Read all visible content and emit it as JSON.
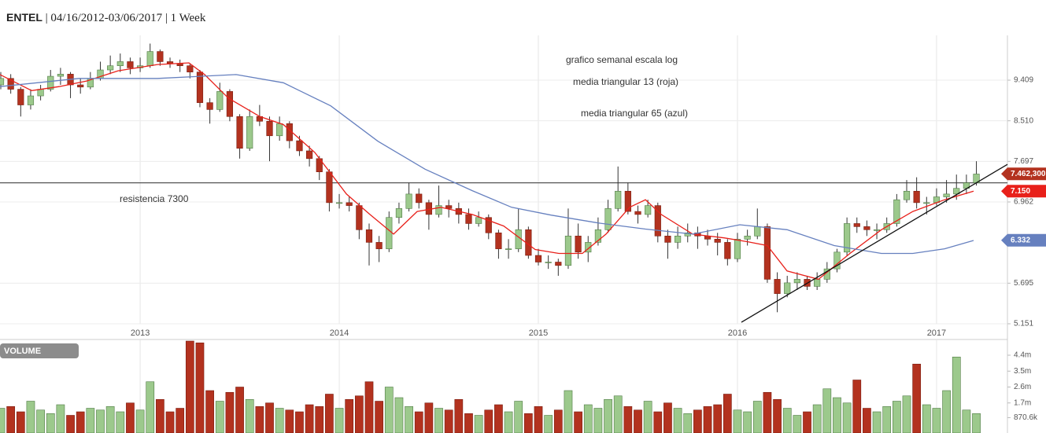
{
  "header": {
    "symbol": "ENTEL",
    "separator": "|",
    "range": "04/16/2012-03/06/2017",
    "interval": "1 Week"
  },
  "chart_data": [
    {
      "type": "candlestick",
      "log_scale": true,
      "grid": true,
      "up_color": "#9cc98c",
      "down_color": "#b3321f",
      "xlim": [
        2012.296,
        2017.356
      ],
      "xticks": [
        2013,
        2014,
        2015,
        2016,
        2017
      ],
      "ylim": [
        5.151,
        10.41
      ],
      "yticks": [
        5.151,
        5.695,
        6.962,
        7.697,
        {
          "value": 8.51,
          "label": "8.510"
        },
        9.409
      ],
      "x": [
        2012.3,
        2012.35,
        2012.4,
        2012.45,
        2012.5,
        2012.55,
        2012.6,
        2012.65,
        2012.7,
        2012.75,
        2012.8,
        2012.85,
        2012.9,
        2012.95,
        2013,
        2013.05,
        2013.1,
        2013.15,
        2013.2,
        2013.25,
        2013.3,
        2013.35,
        2013.4,
        2013.45,
        2013.5,
        2013.55,
        2013.6,
        2013.65,
        2013.7,
        2013.75,
        2013.8,
        2013.85,
        2013.9,
        2013.95,
        2014,
        2014.05,
        2014.1,
        2014.15,
        2014.2,
        2014.25,
        2014.3,
        2014.35,
        2014.4,
        2014.45,
        2014.5,
        2014.55,
        2014.6,
        2014.65,
        2014.7,
        2014.75,
        2014.8,
        2014.85,
        2014.9,
        2014.95,
        2015,
        2015.05,
        2015.1,
        2015.15,
        2015.2,
        2015.25,
        2015.3,
        2015.35,
        2015.4,
        2015.45,
        2015.5,
        2015.55,
        2015.6,
        2015.65,
        2015.7,
        2015.75,
        2015.8,
        2015.85,
        2015.9,
        2015.95,
        2016,
        2016.05,
        2016.1,
        2016.15,
        2016.2,
        2016.25,
        2016.3,
        2016.35,
        2016.4,
        2016.45,
        2016.5,
        2016.55,
        2016.6,
        2016.65,
        2016.7,
        2016.75,
        2016.8,
        2016.85,
        2016.9,
        2016.95,
        2017,
        2017.05,
        2017.1,
        2017.15,
        2017.2
      ],
      "candles": [
        [
          9.3,
          9.6,
          9.2,
          9.45
        ],
        [
          9.45,
          9.55,
          9.1,
          9.2
        ],
        [
          9.2,
          9.25,
          8.6,
          8.85
        ],
        [
          8.85,
          9.2,
          8.75,
          9.05
        ],
        [
          9.05,
          9.3,
          8.95,
          9.2
        ],
        [
          9.2,
          9.65,
          9.15,
          9.5
        ],
        [
          9.5,
          9.7,
          9.3,
          9.55
        ],
        [
          9.55,
          9.6,
          9.0,
          9.3
        ],
        [
          9.3,
          9.45,
          9.1,
          9.25
        ],
        [
          9.25,
          9.6,
          9.2,
          9.45
        ],
        [
          9.45,
          9.85,
          9.4,
          9.65
        ],
        [
          9.65,
          10.0,
          9.55,
          9.75
        ],
        [
          9.75,
          10.05,
          9.6,
          9.85
        ],
        [
          9.85,
          9.95,
          9.55,
          9.7
        ],
        [
          9.7,
          9.95,
          9.6,
          9.75
        ],
        [
          9.75,
          10.3,
          9.7,
          10.1
        ],
        [
          10.1,
          10.15,
          9.75,
          9.85
        ],
        [
          9.85,
          9.95,
          9.7,
          9.8
        ],
        [
          9.8,
          9.9,
          9.6,
          9.75
        ],
        [
          9.75,
          9.8,
          9.45,
          9.6
        ],
        [
          9.6,
          9.65,
          8.8,
          8.9
        ],
        [
          8.9,
          9.0,
          8.45,
          8.75
        ],
        [
          8.75,
          9.35,
          8.7,
          9.15
        ],
        [
          9.15,
          9.2,
          8.5,
          8.6
        ],
        [
          8.6,
          8.65,
          7.75,
          7.95
        ],
        [
          7.95,
          8.75,
          7.9,
          8.6
        ],
        [
          8.6,
          8.85,
          8.4,
          8.5
        ],
        [
          8.5,
          8.6,
          7.7,
          8.2
        ],
        [
          8.2,
          8.6,
          8.1,
          8.45
        ],
        [
          8.45,
          8.5,
          7.95,
          8.1
        ],
        [
          8.1,
          8.2,
          7.8,
          7.9
        ],
        [
          7.9,
          8.0,
          7.6,
          7.75
        ],
        [
          7.75,
          7.8,
          7.35,
          7.5
        ],
        [
          7.5,
          7.55,
          6.8,
          6.95
        ],
        [
          6.95,
          7.1,
          6.85,
          6.95
        ],
        [
          6.95,
          7.05,
          6.8,
          6.9
        ],
        [
          6.9,
          6.95,
          6.35,
          6.5
        ],
        [
          6.5,
          6.6,
          5.95,
          6.3
        ],
        [
          6.3,
          6.4,
          6.0,
          6.2
        ],
        [
          6.2,
          6.8,
          6.15,
          6.7
        ],
        [
          6.7,
          6.95,
          6.6,
          6.85
        ],
        [
          6.85,
          7.3,
          6.8,
          7.1
        ],
        [
          7.1,
          7.2,
          6.85,
          6.95
        ],
        [
          6.95,
          7.0,
          6.5,
          6.75
        ],
        [
          6.75,
          7.25,
          6.7,
          6.9
        ],
        [
          6.9,
          7.0,
          6.7,
          6.85
        ],
        [
          6.85,
          6.95,
          6.6,
          6.75
        ],
        [
          6.75,
          6.85,
          6.5,
          6.6
        ],
        [
          6.6,
          6.8,
          6.55,
          6.7
        ],
        [
          6.7,
          6.75,
          6.35,
          6.45
        ],
        [
          6.45,
          6.5,
          6.05,
          6.2
        ],
        [
          6.2,
          6.35,
          6.05,
          6.2
        ],
        [
          6.2,
          6.85,
          6.15,
          6.5
        ],
        [
          6.5,
          6.55,
          6.05,
          6.1
        ],
        [
          6.1,
          6.2,
          5.95,
          6.0
        ],
        [
          6.0,
          6.1,
          5.9,
          6.0
        ],
        [
          6.0,
          6.05,
          5.8,
          5.95
        ],
        [
          5.95,
          6.85,
          5.9,
          6.4
        ],
        [
          6.4,
          6.6,
          6.05,
          6.15
        ],
        [
          6.15,
          6.4,
          6.0,
          6.3
        ],
        [
          6.3,
          6.7,
          6.25,
          6.5
        ],
        [
          6.5,
          7.0,
          6.45,
          6.85
        ],
        [
          6.85,
          7.6,
          6.8,
          7.15
        ],
        [
          7.15,
          7.3,
          6.75,
          6.8
        ],
        [
          6.8,
          6.9,
          6.6,
          6.75
        ],
        [
          6.75,
          7.0,
          6.7,
          6.9
        ],
        [
          6.9,
          6.95,
          6.3,
          6.4
        ],
        [
          6.4,
          6.5,
          6.05,
          6.3
        ],
        [
          6.3,
          6.55,
          6.2,
          6.4
        ],
        [
          6.4,
          6.6,
          6.3,
          6.45
        ],
        [
          6.45,
          6.55,
          6.2,
          6.4
        ],
        [
          6.4,
          6.5,
          6.25,
          6.35
        ],
        [
          6.35,
          6.45,
          6.1,
          6.3
        ],
        [
          6.3,
          6.35,
          5.95,
          6.05
        ],
        [
          6.05,
          6.45,
          6.0,
          6.35
        ],
        [
          6.35,
          6.5,
          6.25,
          6.4
        ],
        [
          6.4,
          6.85,
          6.35,
          6.55
        ],
        [
          6.55,
          6.6,
          5.7,
          5.75
        ],
        [
          5.75,
          5.85,
          5.3,
          5.55
        ],
        [
          5.55,
          5.8,
          5.5,
          5.7
        ],
        [
          5.7,
          5.85,
          5.6,
          5.75
        ],
        [
          5.75,
          5.8,
          5.6,
          5.65
        ],
        [
          5.65,
          5.85,
          5.6,
          5.75
        ],
        [
          5.75,
          6.0,
          5.7,
          5.9
        ],
        [
          5.9,
          6.2,
          5.85,
          6.15
        ],
        [
          6.15,
          6.7,
          6.1,
          6.6
        ],
        [
          6.6,
          6.7,
          6.45,
          6.55
        ],
        [
          6.55,
          6.65,
          6.4,
          6.5
        ],
        [
          6.5,
          6.6,
          6.35,
          6.5
        ],
        [
          6.5,
          6.7,
          6.45,
          6.6
        ],
        [
          6.6,
          7.1,
          6.55,
          7.0
        ],
        [
          7.0,
          7.35,
          6.95,
          7.15
        ],
        [
          7.15,
          7.4,
          6.85,
          6.95
        ],
        [
          6.95,
          7.05,
          6.75,
          6.95
        ],
        [
          6.95,
          7.2,
          6.9,
          7.05
        ],
        [
          7.05,
          7.35,
          6.95,
          7.1
        ],
        [
          7.1,
          7.45,
          7.0,
          7.2
        ],
        [
          7.2,
          7.45,
          7.1,
          7.3
        ],
        [
          7.3,
          7.7,
          7.25,
          7.46
        ]
      ],
      "lines": [
        {
          "color": "#e8201a",
          "x": [
            2012.296,
            2012.455,
            2012.593,
            2012.731,
            2012.889,
            2013.087,
            2013.245,
            2013.324,
            2013.443,
            2013.601,
            2013.719,
            2013.877,
            2014.036,
            2014.154,
            2014.273,
            2014.391,
            2014.51,
            2014.668,
            2014.826,
            2014.984,
            2015.103,
            2015.221,
            2015.34,
            2015.458,
            2015.538,
            2015.617,
            2015.775,
            2015.933,
            2016.051,
            2016.15,
            2016.249,
            2016.407,
            2016.565,
            2016.723,
            2016.881,
            2017.04,
            2017.186
          ],
          "values": [
            9.54,
            9.17,
            9.26,
            9.39,
            9.63,
            9.78,
            9.82,
            9.54,
            9.0,
            8.6,
            8.43,
            7.87,
            7.1,
            6.75,
            6.43,
            6.8,
            6.87,
            6.75,
            6.56,
            6.19,
            6.13,
            6.13,
            6.43,
            6.87,
            7.0,
            6.75,
            6.43,
            6.37,
            6.31,
            6.25,
            5.87,
            5.75,
            6.13,
            6.5,
            6.8,
            7.0,
            7.15
          ]
        },
        {
          "color": "#6680bf",
          "x": [
            2012.296,
            2012.692,
            2013.087,
            2013.482,
            2013.719,
            2013.957,
            2014.194,
            2014.431,
            2014.668,
            2014.866,
            2015.063,
            2015.3,
            2015.538,
            2015.775,
            2016.012,
            2016.249,
            2016.486,
            2016.723,
            2016.881,
            2017.04,
            2017.186
          ],
          "values": [
            9.26,
            9.45,
            9.45,
            9.54,
            9.35,
            8.83,
            8.09,
            7.55,
            7.16,
            6.87,
            6.74,
            6.61,
            6.51,
            6.43,
            6.58,
            6.5,
            6.25,
            6.13,
            6.13,
            6.2,
            6.33
          ]
        },
        {
          "color": "#111111",
          "x": [
            2016.02,
            2017.356
          ],
          "values": [
            5.17,
            7.64
          ]
        }
      ],
      "hline": {
        "value": 7.3,
        "label": "resistencia 7300",
        "color": "#555555"
      },
      "annotations": [
        "grafico semanal escala log",
        "media triangular 13 (roja)",
        "media triangular 65 (azul)"
      ],
      "price_markers": [
        {
          "value": 7.4623,
          "label": "7.462,300",
          "color": "#b3321f"
        },
        {
          "value": 7.15,
          "label": "7.150",
          "color": "#e8201a"
        },
        {
          "value": 6.332,
          "label": "6.332",
          "color": "#6680bf"
        }
      ]
    },
    {
      "type": "bar",
      "title": "VOLUME",
      "ylim": [
        0,
        5.29
      ],
      "yticks": [
        {
          "value": 0.8706,
          "label": "870.6k"
        },
        {
          "value": 1.7,
          "label": "1.7m"
        },
        {
          "value": 2.6,
          "label": "2.6m"
        },
        {
          "value": 3.5,
          "label": "3.5m"
        },
        {
          "value": 4.4,
          "label": "4.4m"
        }
      ],
      "values": [
        1.4,
        1.5,
        1.2,
        1.8,
        1.3,
        1.1,
        1.6,
        1.0,
        1.2,
        1.4,
        1.3,
        1.5,
        1.2,
        1.7,
        1.3,
        2.9,
        1.9,
        1.2,
        1.4,
        5.2,
        5.1,
        2.4,
        1.8,
        2.3,
        2.6,
        1.9,
        1.5,
        1.7,
        1.4,
        1.3,
        1.2,
        1.6,
        1.5,
        2.2,
        1.4,
        1.9,
        2.1,
        2.9,
        1.8,
        2.6,
        2.0,
        1.5,
        1.2,
        1.7,
        1.4,
        1.3,
        1.9,
        1.1,
        1.0,
        1.3,
        1.6,
        1.2,
        1.8,
        1.1,
        1.5,
        1.0,
        1.3,
        2.4,
        1.2,
        1.6,
        1.4,
        1.9,
        2.1,
        1.5,
        1.3,
        1.8,
        1.2,
        1.7,
        1.4,
        1.1,
        1.3,
        1.5,
        1.6,
        2.2,
        1.3,
        1.2,
        1.8,
        2.3,
        1.9,
        1.4,
        1.0,
        1.2,
        1.6,
        2.5,
        2.0,
        1.7,
        3.0,
        1.4,
        1.2,
        1.5,
        1.8,
        2.1,
        3.9,
        1.6,
        1.4,
        2.4,
        4.3,
        1.3,
        1.1
      ]
    }
  ]
}
